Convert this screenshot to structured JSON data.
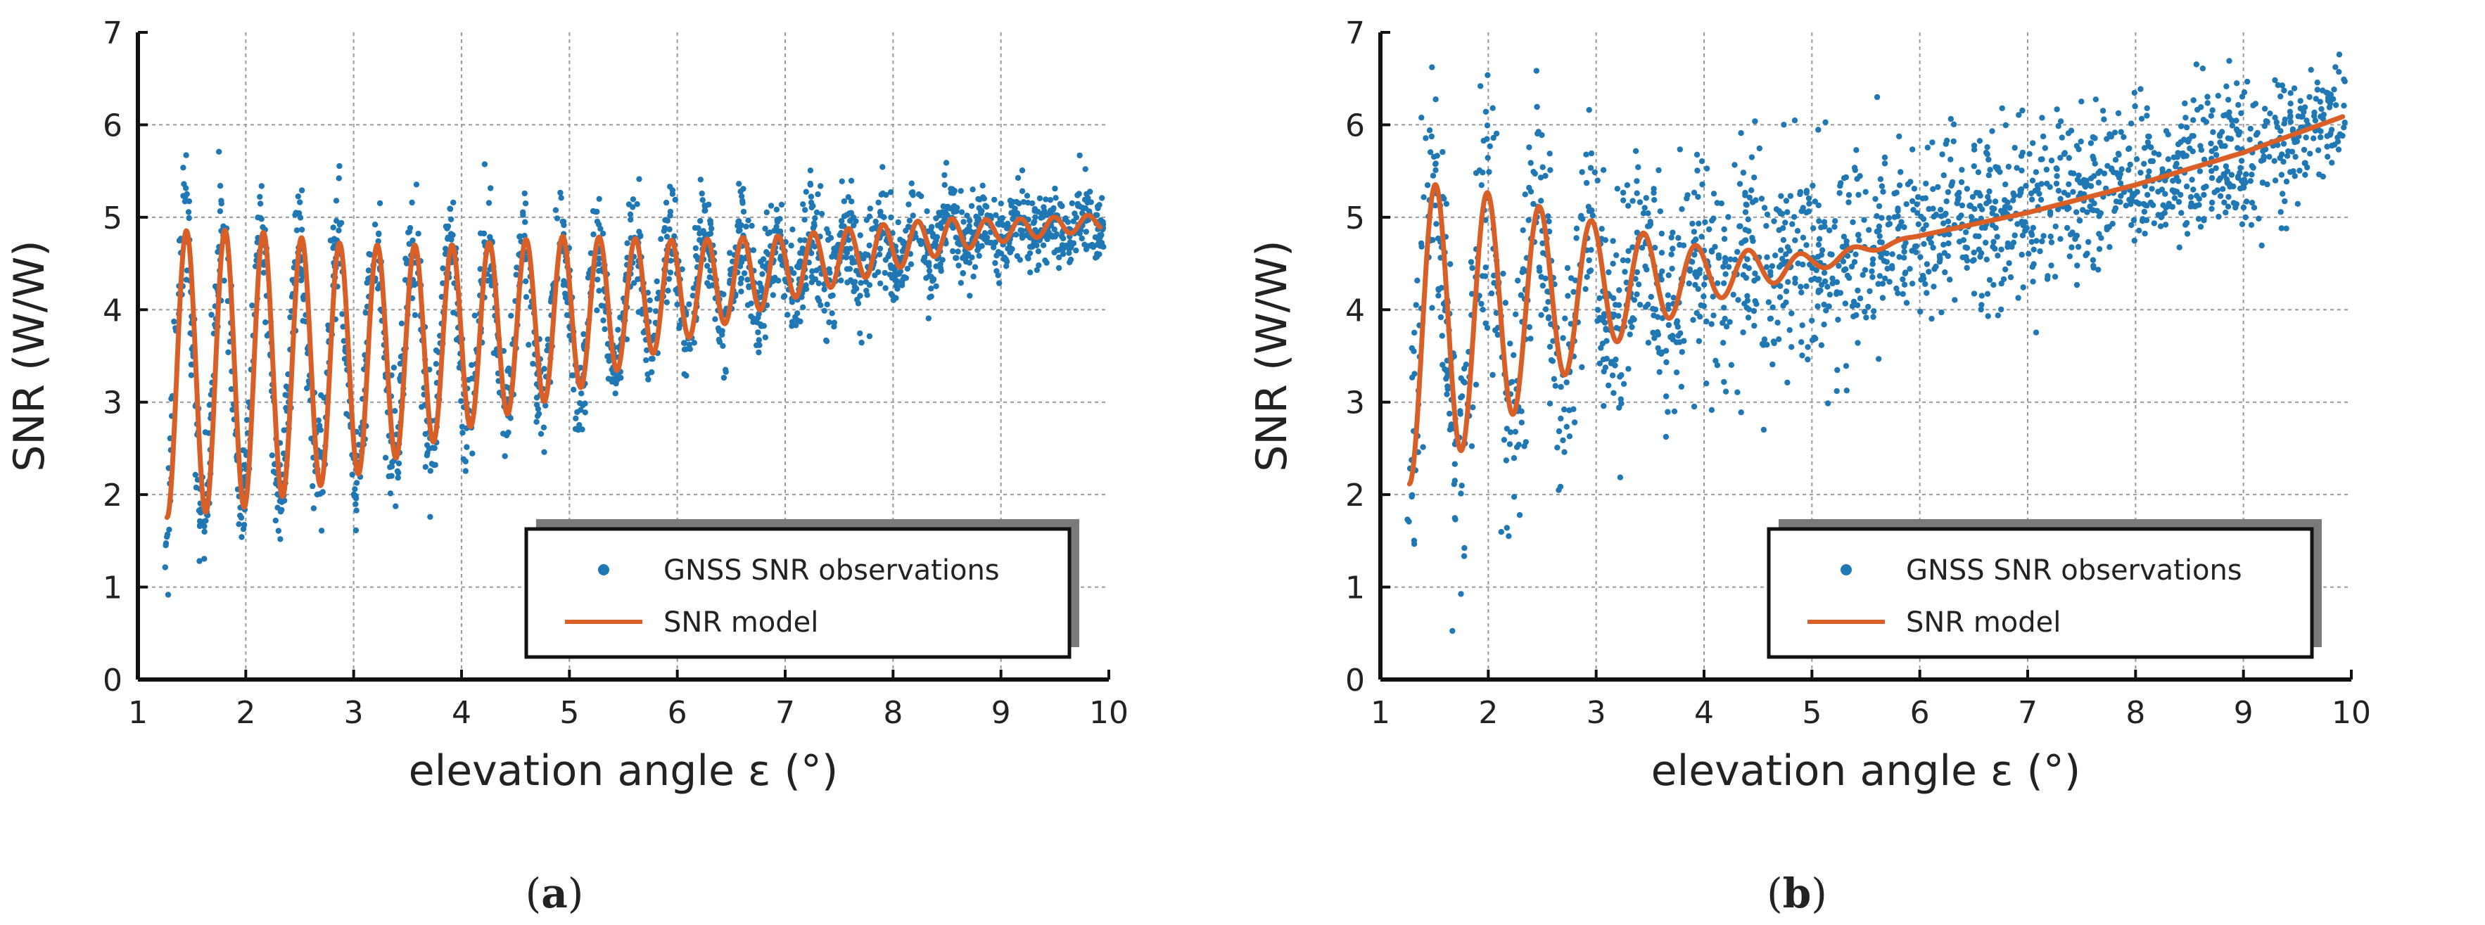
{
  "chart_data": [
    {
      "type": "scatter",
      "panel_label": "a",
      "xlabel": "elevation angle ε (°)",
      "ylabel": "SNR (W/W)",
      "xlim": [
        1,
        10
      ],
      "ylim": [
        0,
        7
      ],
      "xticks": [
        1,
        2,
        3,
        4,
        5,
        6,
        7,
        8,
        9,
        10
      ],
      "yticks": [
        0,
        1,
        2,
        3,
        4,
        5,
        6,
        7
      ],
      "grid": true,
      "legend": {
        "position": "bottom-right",
        "entries": [
          "GNSS SNR observations",
          "SNR model"
        ]
      },
      "series": [
        {
          "name": "GNSS SNR observations",
          "kind": "scatter",
          "color": "#1f77b4",
          "x_range": [
            1.25,
            9.95
          ],
          "model": {
            "base": [
              [
                1.25,
                3.3
              ],
              [
                3,
                3.45
              ],
              [
                5,
                3.95
              ],
              [
                7,
                4.45
              ],
              [
                8.5,
                4.8
              ],
              [
                9.95,
                4.95
              ]
            ],
            "amplitude": [
              [
                1.25,
                1.55
              ],
              [
                2,
                1.5
              ],
              [
                4,
                1.0
              ],
              [
                5,
                0.85
              ],
              [
                6,
                0.55
              ],
              [
                7,
                0.35
              ],
              [
                8,
                0.25
              ],
              [
                9,
                0.12
              ],
              [
                9.95,
                0.08
              ]
            ],
            "period_start": 0.36,
            "period_end": 0.31,
            "phase_shift": 0.0,
            "noise": [
              [
                1.25,
                0.38
              ],
              [
                5,
                0.28
              ],
              [
                7,
                0.3
              ],
              [
                9.95,
                0.18
              ]
            ]
          },
          "count": 2200,
          "seed": 7
        },
        {
          "name": "SNR model",
          "kind": "line",
          "color": "#d95f26",
          "x_range": [
            1.27,
            9.92
          ],
          "model": {
            "base": [
              [
                1.25,
                3.3
              ],
              [
                3,
                3.45
              ],
              [
                5,
                3.95
              ],
              [
                7,
                4.45
              ],
              [
                8.5,
                4.8
              ],
              [
                9.95,
                4.95
              ]
            ],
            "amplitude": [
              [
                1.25,
                1.55
              ],
              [
                2,
                1.5
              ],
              [
                4,
                1.0
              ],
              [
                5,
                0.85
              ],
              [
                6,
                0.55
              ],
              [
                7,
                0.35
              ],
              [
                8,
                0.25
              ],
              [
                9,
                0.12
              ],
              [
                9.95,
                0.08
              ]
            ],
            "period_start": 0.36,
            "period_end": 0.31,
            "phase_shift": 0.0
          }
        }
      ]
    },
    {
      "type": "scatter",
      "panel_label": "b",
      "xlabel": "elevation angle ε (°)",
      "ylabel": "SNR (W/W)",
      "xlim": [
        1,
        10
      ],
      "ylim": [
        0,
        7
      ],
      "xticks": [
        1,
        2,
        3,
        4,
        5,
        6,
        7,
        8,
        9,
        10
      ],
      "yticks": [
        0,
        1,
        2,
        3,
        4,
        5,
        6,
        7
      ],
      "grid": true,
      "legend": {
        "position": "bottom-right",
        "entries": [
          "GNSS SNR observations",
          "SNR model"
        ]
      },
      "series": [
        {
          "name": "GNSS SNR observations",
          "kind": "scatter",
          "color": "#1f77b4",
          "x_range": [
            1.25,
            9.95
          ],
          "model": {
            "base": [
              [
                1.25,
                3.75
              ],
              [
                3,
                4.25
              ],
              [
                5,
                4.5
              ],
              [
                6,
                4.8
              ],
              [
                7,
                5.05
              ],
              [
                8,
                5.35
              ],
              [
                9,
                5.7
              ],
              [
                9.95,
                6.1
              ]
            ],
            "amplitude": [
              [
                1.25,
                1.65
              ],
              [
                2,
                1.3
              ],
              [
                3,
                0.7
              ],
              [
                4,
                0.3
              ],
              [
                5,
                0.1
              ],
              [
                6,
                0.0
              ],
              [
                9.95,
                0.0
              ]
            ],
            "period_start": 0.48,
            "period_end": 0.5,
            "phase_shift": 0.0,
            "noise": [
              [
                1.25,
                0.8
              ],
              [
                3,
                0.6
              ],
              [
                5,
                0.55
              ],
              [
                7,
                0.45
              ],
              [
                9.95,
                0.35
              ]
            ]
          },
          "count": 1800,
          "seed": 19
        },
        {
          "name": "SNR model",
          "kind": "line",
          "color": "#d95f26",
          "x_range": [
            1.27,
            9.92
          ],
          "model": {
            "base": [
              [
                1.25,
                3.75
              ],
              [
                3,
                4.25
              ],
              [
                5,
                4.5
              ],
              [
                6,
                4.8
              ],
              [
                7,
                5.05
              ],
              [
                8,
                5.35
              ],
              [
                9,
                5.7
              ],
              [
                9.95,
                6.1
              ]
            ],
            "amplitude": [
              [
                1.25,
                1.65
              ],
              [
                2,
                1.3
              ],
              [
                3,
                0.7
              ],
              [
                4,
                0.3
              ],
              [
                5,
                0.1
              ],
              [
                6,
                0.0
              ],
              [
                9.95,
                0.0
              ]
            ],
            "period_start": 0.48,
            "period_end": 0.5,
            "phase_shift": 0.0
          }
        }
      ]
    }
  ]
}
